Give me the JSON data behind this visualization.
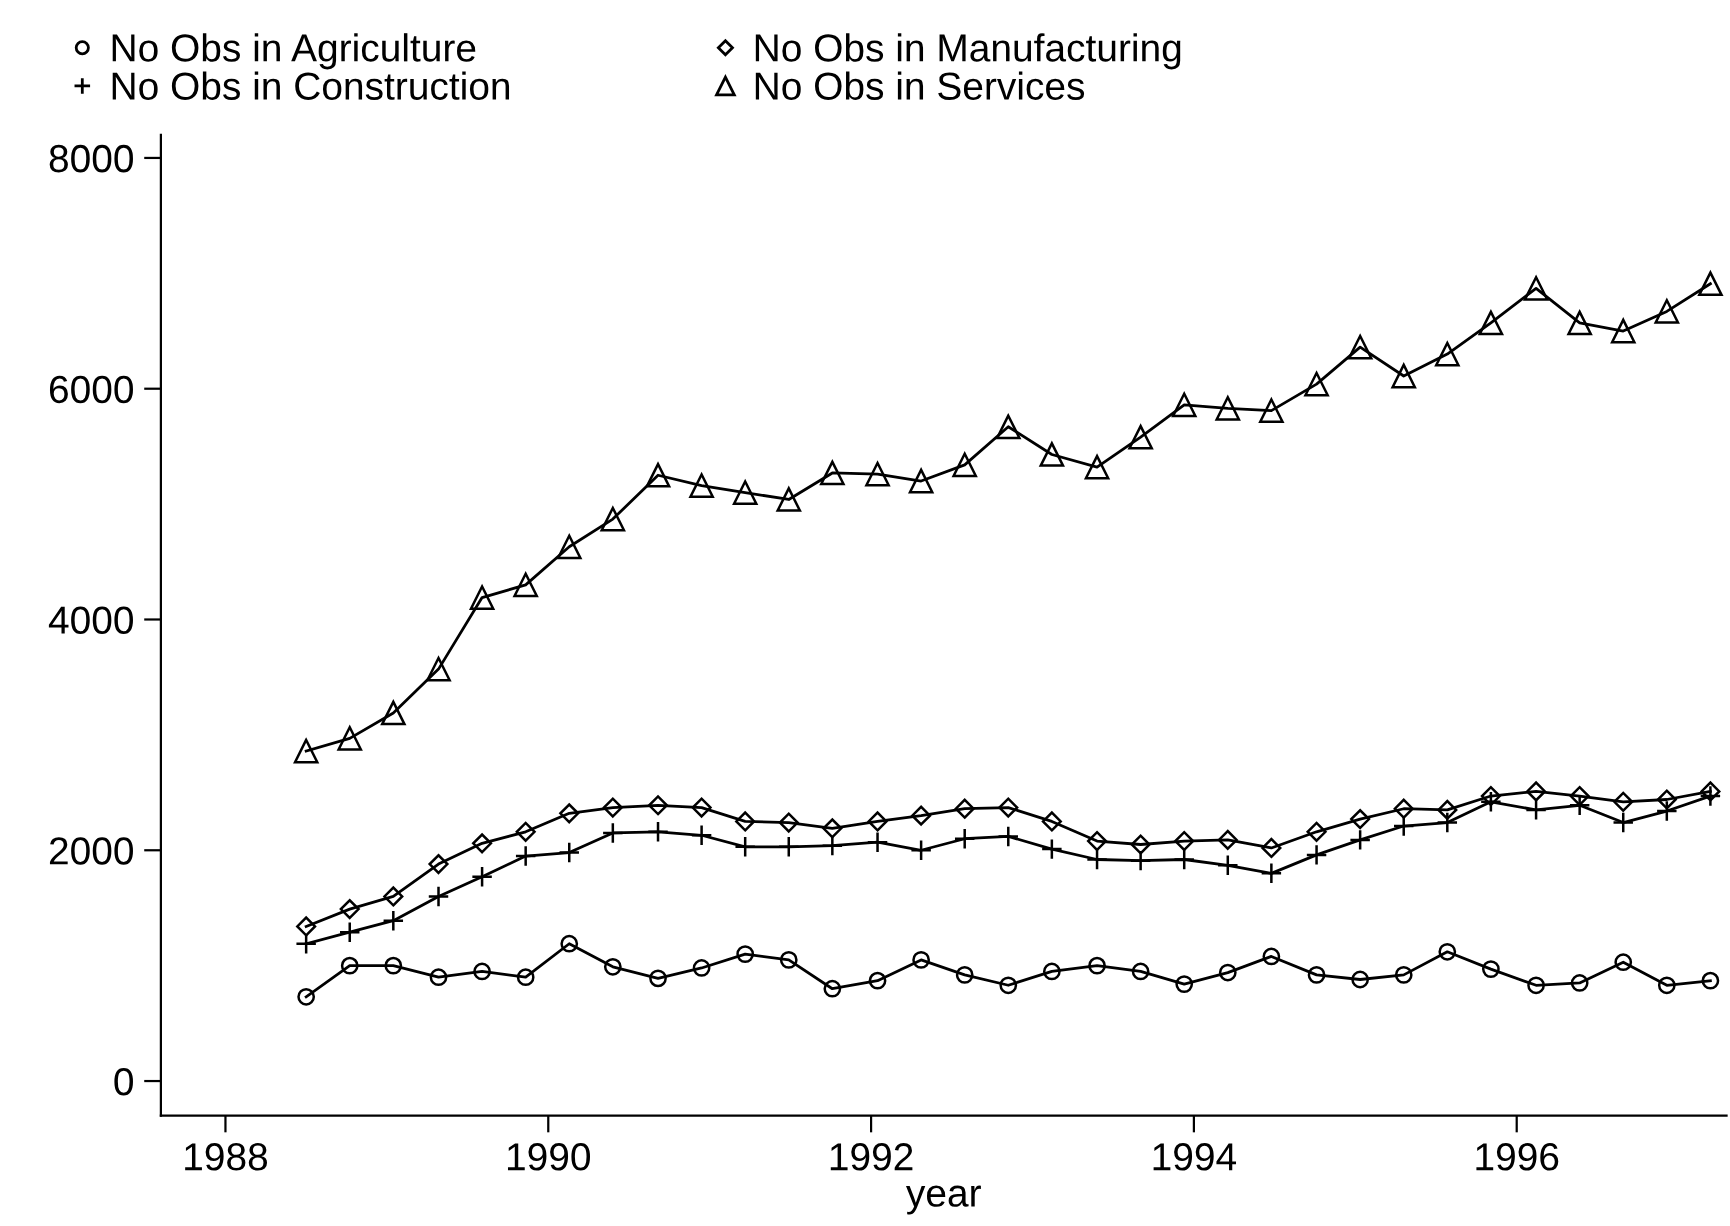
{
  "chart_data": {
    "type": "line",
    "xlabel": "year",
    "x": [
      1988.5,
      1988.77,
      1989.04,
      1989.32,
      1989.59,
      1989.86,
      1990.13,
      1990.4,
      1990.68,
      1990.95,
      1991.22,
      1991.49,
      1991.76,
      1992.04,
      1992.31,
      1992.58,
      1992.85,
      1993.12,
      1993.4,
      1993.67,
      1993.94,
      1994.21,
      1994.48,
      1994.76,
      1995.03,
      1995.3,
      1995.57,
      1995.84,
      1996.12,
      1996.39,
      1996.66,
      1996.93,
      1997.2
    ],
    "series": [
      {
        "name": "No Obs in Agriculture",
        "color": "#000000",
        "marker": "circle",
        "values": [
          730,
          1000,
          1000,
          900,
          950,
          900,
          1190,
          990,
          890,
          980,
          1100,
          1050,
          800,
          870,
          1050,
          920,
          830,
          950,
          1000,
          950,
          840,
          940,
          1080,
          920,
          880,
          920,
          1120,
          970,
          830,
          850,
          1030,
          830,
          870
        ]
      },
      {
        "name": "No Obs in Construction",
        "color": "#000000",
        "marker": "cross",
        "values": [
          1190,
          1290,
          1390,
          1600,
          1770,
          1950,
          1980,
          2150,
          2160,
          2130,
          2030,
          2030,
          2040,
          2070,
          2000,
          2100,
          2120,
          2010,
          1920,
          1910,
          1920,
          1870,
          1800,
          1960,
          2090,
          2210,
          2240,
          2420,
          2350,
          2390,
          2240,
          2340,
          2470
        ]
      },
      {
        "name": "No Obs in Manufacturing",
        "color": "#000000",
        "marker": "diamond",
        "values": [
          1340,
          1490,
          1600,
          1880,
          2060,
          2160,
          2320,
          2370,
          2390,
          2370,
          2250,
          2240,
          2190,
          2250,
          2300,
          2360,
          2370,
          2250,
          2080,
          2050,
          2080,
          2090,
          2020,
          2160,
          2270,
          2360,
          2350,
          2470,
          2510,
          2470,
          2420,
          2440,
          2510
        ]
      },
      {
        "name": "No Obs in Services",
        "color": "#000000",
        "marker": "triangle",
        "values": [
          2860,
          2970,
          3190,
          3570,
          4190,
          4300,
          4630,
          4870,
          5250,
          5160,
          5100,
          5040,
          5270,
          5260,
          5200,
          5340,
          5670,
          5430,
          5320,
          5580,
          5860,
          5830,
          5810,
          6040,
          6360,
          6110,
          6300,
          6570,
          6870,
          6570,
          6500,
          6670,
          6910
        ]
      }
    ],
    "xlim": [
      1987.6,
      1997.3
    ],
    "xticks": [
      1988,
      1990,
      1992,
      1994,
      1996
    ],
    "ylim": [
      -300,
      8200
    ],
    "yticks": [
      0,
      2000,
      4000,
      6000,
      8000
    ],
    "grid": false,
    "legend": "top",
    "line_style": "solid"
  }
}
